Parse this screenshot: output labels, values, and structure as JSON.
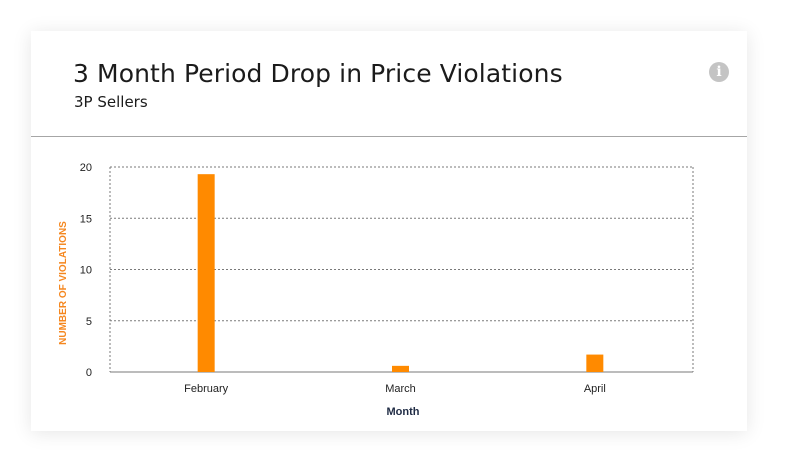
{
  "card": {
    "title": "3 Month Period Drop in Price Violations",
    "subtitle": "3P Sellers",
    "info_icon": "info-icon"
  },
  "colors": {
    "bar": "#ff8a00",
    "ylabel": "#f5871f",
    "xlabel": "#1f2b44",
    "grid": "#7a7a7a"
  },
  "chart_data": {
    "type": "bar",
    "categories": [
      "February",
      "March",
      "April"
    ],
    "values": [
      19.3,
      0.6,
      1.7
    ],
    "xlabel": "Month",
    "ylabel": "NUMBER OF VIOLATIONS",
    "ylim": [
      0,
      20
    ],
    "yticks": [
      0,
      5,
      10,
      15,
      20
    ],
    "grid": true
  }
}
